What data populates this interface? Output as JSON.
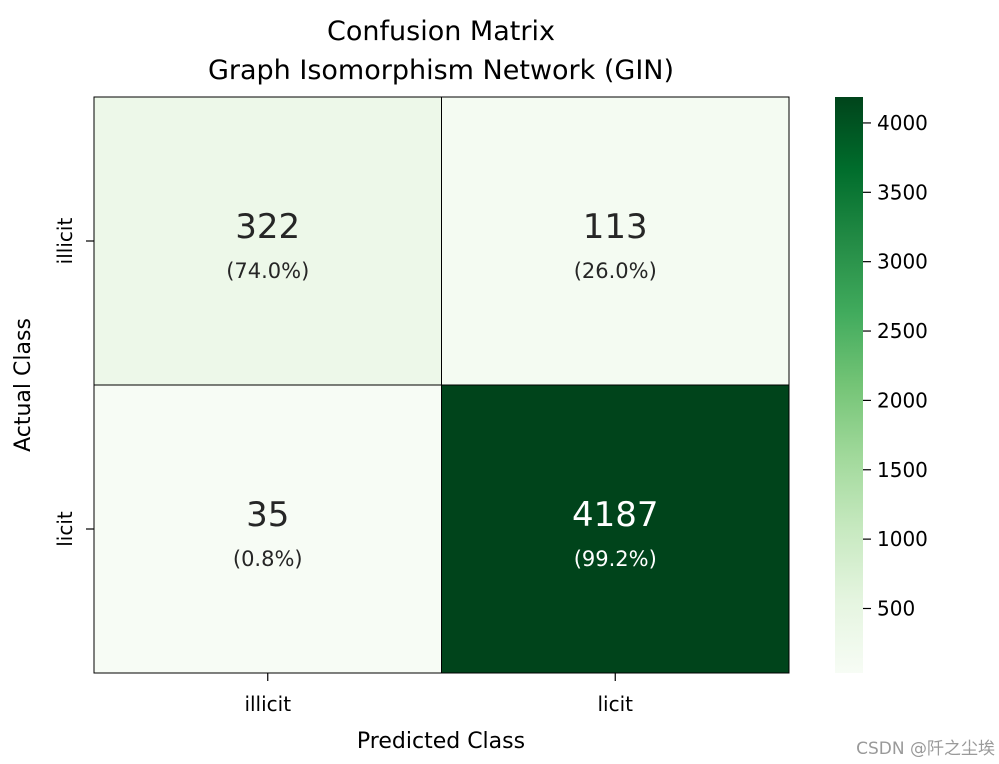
{
  "chart_data": {
    "type": "heatmap",
    "title": [
      "Confusion Matrix",
      "Graph Isomorphism Network (GIN)"
    ],
    "xlabel": "Predicted Class",
    "ylabel": "Actual Class",
    "x_categories": [
      "illicit",
      "licit"
    ],
    "y_categories": [
      "illicit",
      "licit"
    ],
    "values": [
      [
        322,
        113
      ],
      [
        35,
        4187
      ]
    ],
    "percent_labels": [
      [
        "(74.0%)",
        "(26.0%)"
      ],
      [
        "(0.8%)",
        "(99.2%)"
      ]
    ],
    "colormap": "Greens",
    "color_range": [
      35,
      4187
    ],
    "colorbar_ticks": [
      500,
      1000,
      1500,
      2000,
      2500,
      3000,
      3500,
      4000
    ],
    "colors": {
      "low": "#f7fcf5",
      "high": "#00441b",
      "light_text": "#ffffff",
      "dark_text": "#262626",
      "cell_border": "#000000"
    }
  },
  "watermark": "CSDN @阡之尘埃"
}
